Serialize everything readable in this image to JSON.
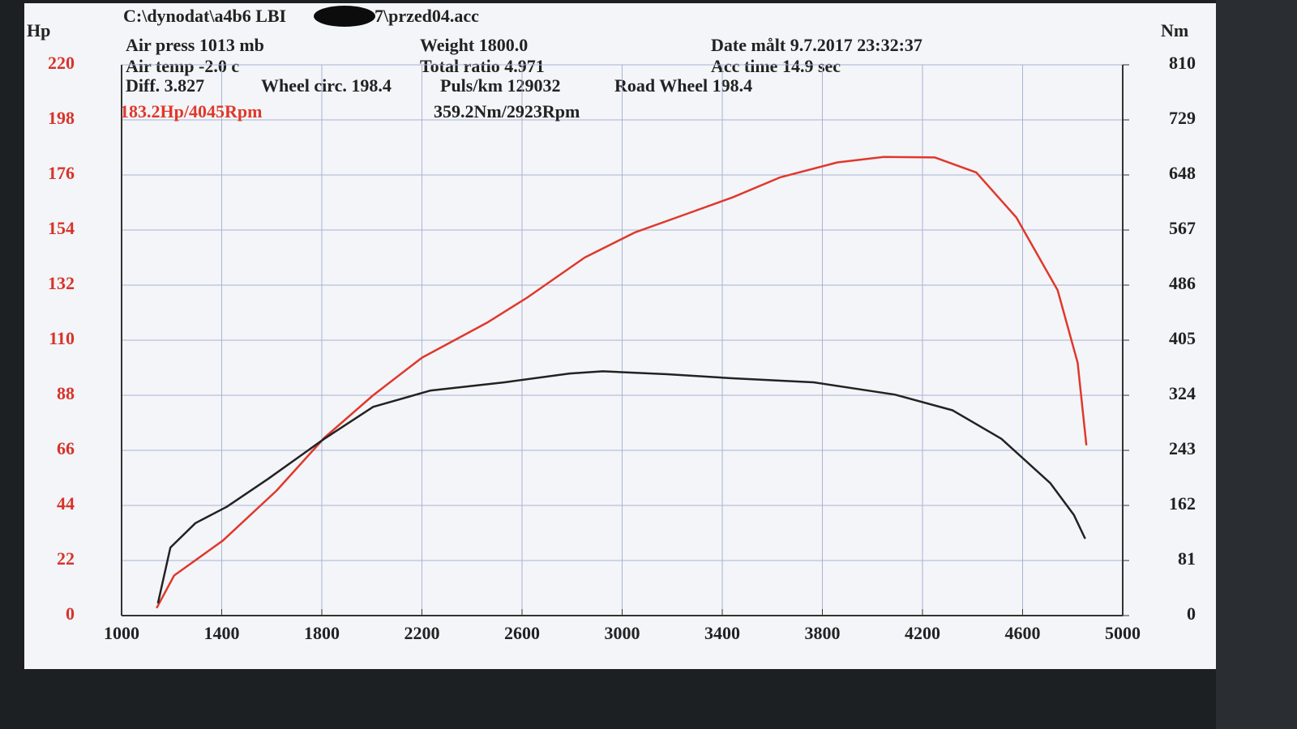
{
  "chart_data": {
    "type": "line",
    "title_parts": [
      "C:\\dynodat\\a4b6 LBI",
      "7\\przed04.acc"
    ],
    "info": [
      "Air press  1013 mb",
      "Weight  1800.0",
      "Date målt 9.7.2017 23:32:37",
      "Air temp  -2.0 c",
      "Total ratio 4.971",
      "Acc time  14.9 sec",
      "Diff.   3.827",
      "Wheel circ. 198.4",
      "Puls/km  129032",
      "Road Wheel 198.4"
    ],
    "annotations": [
      {
        "text": "183.2Hp/4045Rpm",
        "color": "#e0382c"
      },
      {
        "text": "359.2Nm/2923Rpm",
        "color": "#222222"
      }
    ],
    "ylabel": "Hp",
    "y2label": "Nm",
    "xlim": [
      1000,
      5000
    ],
    "xticks": [
      1000,
      1400,
      1800,
      2200,
      2600,
      3000,
      3400,
      3800,
      4200,
      4600,
      5000
    ],
    "ylim": [
      0,
      220
    ],
    "yticks": [
      0,
      22,
      44,
      66,
      88,
      110,
      132,
      154,
      176,
      198,
      220
    ],
    "y2lim": [
      0,
      810
    ],
    "y2ticks": [
      0,
      81,
      162,
      243,
      324,
      405,
      486,
      567,
      648,
      729,
      810
    ],
    "grid": true,
    "series": [
      {
        "color": "#e0382c",
        "x": [
          1140,
          1210,
          1405,
          1620,
          1810,
          2005,
          2200,
          2460,
          2620,
          2850,
          3050,
          3245,
          3440,
          3630,
          3860,
          4045,
          4250,
          4415,
          4575,
          4740,
          4820,
          4855
        ],
        "values": [
          3,
          16,
          30,
          50,
          71,
          88,
          103,
          117,
          127,
          143,
          153,
          160,
          167,
          175,
          181,
          183.2,
          183,
          177,
          159,
          130,
          101,
          68
        ]
      },
      {
        "color": "#222222",
        "axis": "y2",
        "x": [
          1145,
          1195,
          1295,
          1420,
          1585,
          1810,
          2005,
          2235,
          2530,
          2790,
          2923,
          3180,
          3440,
          3765,
          4090,
          4320,
          4515,
          4710,
          4805,
          4850
        ],
        "values": [
          18,
          100,
          136,
          160,
          201,
          260,
          307,
          331,
          343,
          356,
          359.2,
          355,
          349,
          343,
          325,
          302,
          260,
          195,
          148,
          113
        ]
      }
    ]
  }
}
